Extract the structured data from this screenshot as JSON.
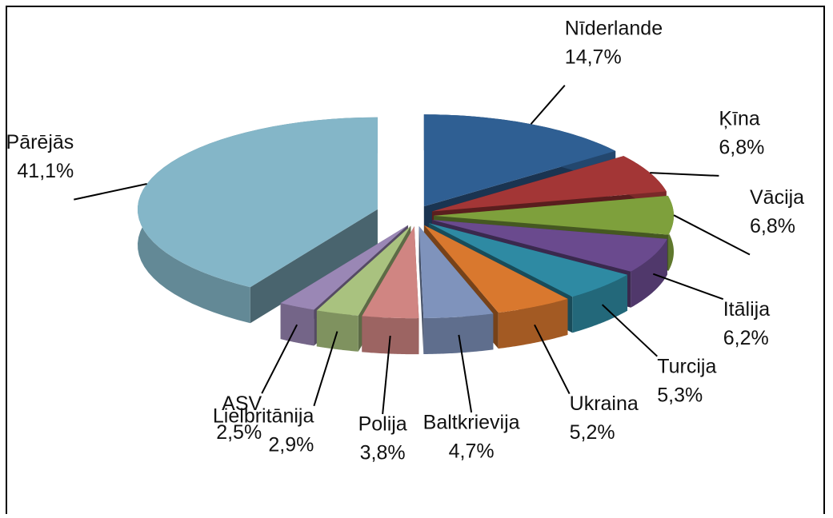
{
  "chart_data": {
    "type": "pie",
    "categories": [
      "Nīderlande",
      "Ķīna",
      "Vācija",
      "Itālija",
      "Turcija",
      "Ukraina",
      "Baltkrievija",
      "Polija",
      "Lielbritānija",
      "ASV",
      "Pārējās"
    ],
    "values": [
      14.7,
      6.8,
      6.8,
      6.2,
      5.3,
      5.2,
      4.7,
      3.8,
      2.9,
      2.5,
      41.1
    ],
    "value_labels": [
      "14,7%",
      "6,8%",
      "6,8%",
      "6,2%",
      "5,3%",
      "5,2%",
      "4,7%",
      "3,8%",
      "2,9%",
      "2,5%",
      "41,1%"
    ],
    "colors": [
      "#2f5f93",
      "#a33636",
      "#7ea03c",
      "#6a4a8e",
      "#2e8aa3",
      "#d9782e",
      "#7f93bc",
      "#d08582",
      "#a9c27f",
      "#9a87b5",
      "#84b6c8"
    ]
  }
}
